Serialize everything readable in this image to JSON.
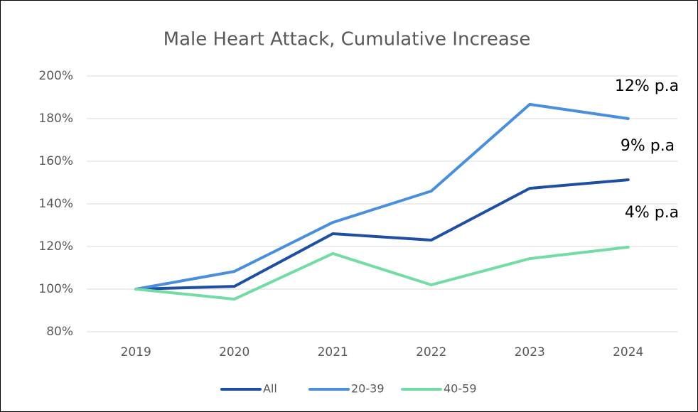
{
  "chart_data": {
    "type": "line",
    "title": "Male Heart Attack, Cumulative Increase",
    "categories": [
      "2019",
      "2020",
      "2021",
      "2022",
      "2023",
      "2024"
    ],
    "series": [
      {
        "name": "All",
        "color": "#1f4fa3",
        "values": [
          100,
          101.3,
          126,
          123,
          147.3,
          151.3
        ]
      },
      {
        "name": "20-39",
        "color": "#4a8fdc",
        "values": [
          100,
          108.3,
          131.3,
          146,
          186.7,
          180
        ]
      },
      {
        "name": "40-59",
        "color": "#72dca4",
        "values": [
          100,
          95.3,
          116.7,
          102,
          114.3,
          119.7
        ]
      }
    ],
    "ylim": [
      80,
      200
    ],
    "yticks": [
      {
        "value": 80,
        "label": "80%"
      },
      {
        "value": 100,
        "label": "100%"
      },
      {
        "value": 120,
        "label": "120%"
      },
      {
        "value": 140,
        "label": "140%"
      },
      {
        "value": 160,
        "label": "160%"
      },
      {
        "value": 180,
        "label": "180%"
      },
      {
        "value": 200,
        "label": "200%"
      }
    ],
    "grid": true,
    "legend": "bottom",
    "annotations": [
      "12% p.a",
      "9% p.a",
      "4% p.a"
    ]
  }
}
